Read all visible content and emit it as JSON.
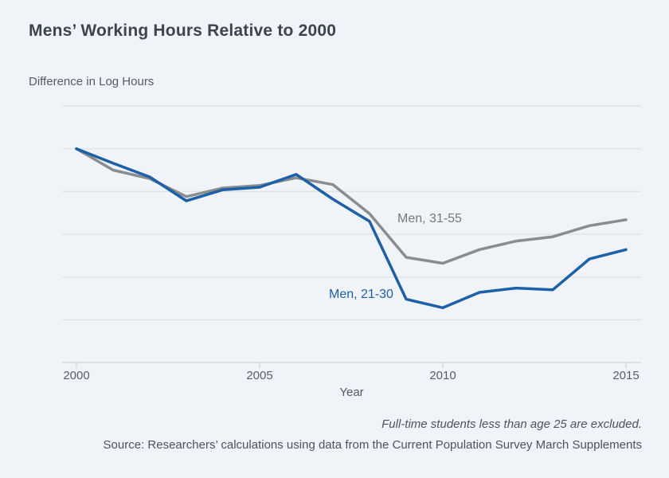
{
  "chart_data": {
    "type": "line",
    "title": "Mens’ Working Hours Relative to 2000",
    "ylabel": "Difference in Log Hours",
    "xlabel": "Year",
    "x": [
      2000,
      2001,
      2002,
      2003,
      2004,
      2005,
      2006,
      2007,
      2008,
      2009,
      2010,
      2011,
      2012,
      2013,
      2014,
      2015
    ],
    "series": [
      {
        "name": "Men, 31-55",
        "color": "#8a8d90",
        "values": [
          0,
          -0.025,
          -0.035,
          -0.056,
          -0.046,
          -0.043,
          -0.034,
          -0.042,
          -0.076,
          -0.127,
          -0.134,
          -0.118,
          -0.108,
          -0.103,
          -0.09,
          -0.083
        ]
      },
      {
        "name": "Men, 21-30",
        "color": "#1d60a8",
        "values": [
          0,
          -0.017,
          -0.033,
          -0.061,
          -0.048,
          -0.045,
          -0.03,
          -0.059,
          -0.085,
          -0.176,
          -0.186,
          -0.168,
          -0.163,
          -0.165,
          -0.129,
          -0.118
        ]
      }
    ],
    "xlim": [
      2000,
      2015
    ],
    "ylim": [
      -0.25,
      0.05
    ],
    "yticks": [
      {
        "value": 0.05,
        "label": "0.05"
      },
      {
        "value": 0,
        "label": "0"
      },
      {
        "value": -0.05,
        "label": "-0.05"
      },
      {
        "value": -0.1,
        "label": "-0.10"
      },
      {
        "value": -0.15,
        "label": "-0.15"
      },
      {
        "value": -0.2,
        "label": "-0.2"
      },
      {
        "value": -0.25,
        "label": "-0.25"
      }
    ],
    "xticks": [
      {
        "value": 2000,
        "label": "2000"
      },
      {
        "value": 2005,
        "label": "2005"
      },
      {
        "value": 2010,
        "label": "2010"
      },
      {
        "value": 2015,
        "label": "2015"
      }
    ],
    "grid": true,
    "legend_position": "inline-annotations"
  },
  "notes": {
    "exclusion": "Full-time students less than age 25 are excluded.",
    "source": "Source: Researchers’ calculations using data from the Current Population Survey March Supplements"
  },
  "colors": {
    "background": "#f0f4f8",
    "title": "#3e444e",
    "axis_text": "#575e66",
    "gridline": "#d8dde2",
    "axis_line": "#c5cbd1",
    "series_label_31_55": "#75787d",
    "series_label_21_30": "#1d60a8"
  }
}
